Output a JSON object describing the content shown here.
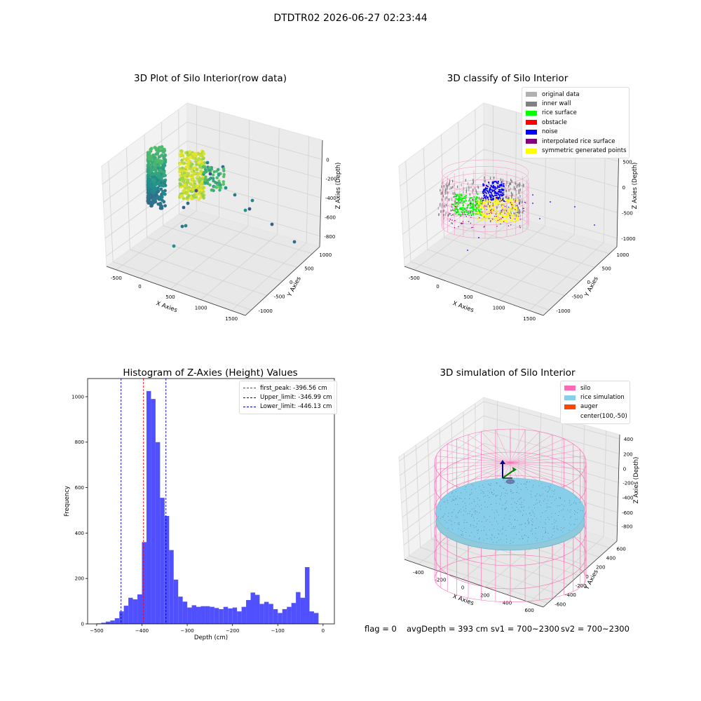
{
  "figure": {
    "suptitle": "DTDTR02 2026-06-27 02:23:44"
  },
  "footer": {
    "flag": "flag = 0",
    "avg_depth": "avgDepth = 393 cm",
    "sv1": "sv1 = 700~2300",
    "sv2": "sv2 = 700~2300"
  },
  "chart_data": [
    {
      "id": "raw-3d",
      "type": "scatter",
      "projection": "3d",
      "title": "3D Plot of Silo Interior(row data)",
      "xlabel": "X Axies",
      "ylabel": "Y Axies",
      "zlabel": "Z Axies (Depth)",
      "xticks": [
        "-500",
        "0",
        "500",
        "1000",
        "1500"
      ],
      "yticks": [
        "-1000",
        "-500",
        "0",
        "500",
        "1000"
      ],
      "zticks": [
        "-800",
        "-600",
        "-400",
        "-200",
        "0"
      ],
      "colormap": "viridis"
    },
    {
      "id": "classify-3d",
      "type": "scatter",
      "projection": "3d",
      "title": "3D classify of Silo Interior",
      "xlabel": "X Axies",
      "ylabel": "Y Axies",
      "zlabel": "Z Axies (Depth)",
      "xticks": [
        "-500",
        "0",
        "500",
        "1000",
        "1500"
      ],
      "yticks": [
        "-1000",
        "-500",
        "0",
        "500",
        "1000"
      ],
      "zticks": [
        "-1000",
        "-500",
        "0",
        "500"
      ],
      "legend_position": "top-right",
      "legend": [
        {
          "label": "original data",
          "color": "#b0b0b0"
        },
        {
          "label": "inner wall",
          "color": "#808080"
        },
        {
          "label": "rice surface",
          "color": "#00ff00"
        },
        {
          "label": "obstacle",
          "color": "#ff0000"
        },
        {
          "label": "noise",
          "color": "#0000ff"
        },
        {
          "label": "interpolated rice surface",
          "color": "#800080"
        },
        {
          "label": "symmetric generated points",
          "color": "#ffff00"
        }
      ]
    },
    {
      "id": "histogram",
      "type": "bar",
      "title": "Histogram of Z-Axies (Height) Values",
      "xlabel": "Depth (cm)",
      "ylabel": "Frequency",
      "xlim": [
        -520,
        25
      ],
      "ylim": [
        0,
        1080
      ],
      "xticks": [
        -500,
        -400,
        -300,
        -200,
        -100,
        0
      ],
      "yticks": [
        0,
        200,
        400,
        600,
        800,
        1000
      ],
      "bar_color": "#4d4dff",
      "bin_start": -500,
      "bin_width": 10,
      "values": [
        2,
        5,
        10,
        15,
        25,
        55,
        80,
        115,
        108,
        130,
        360,
        1025,
        990,
        800,
        555,
        475,
        325,
        195,
        120,
        98,
        72,
        82,
        75,
        78,
        78,
        75,
        70,
        65,
        75,
        68,
        72,
        55,
        75,
        105,
        138,
        128,
        88,
        97,
        88,
        65,
        48,
        65,
        75,
        92,
        140,
        115,
        250,
        55,
        48
      ],
      "legend_position": "top-right",
      "lines": [
        {
          "label": "first_peak: -396.56 cm",
          "x": -396.56,
          "color": "#ff0000"
        },
        {
          "label": "Upper_limit: -346.99 cm",
          "x": -346.99,
          "color": "#0000aa"
        },
        {
          "label": "Lower_limit: -446.13 cm",
          "x": -446.13,
          "color": "#0000aa"
        }
      ]
    },
    {
      "id": "simulation-3d",
      "type": "scatter",
      "projection": "3d",
      "title": "3D simulation of Silo Interior",
      "xlabel": "X Axies",
      "ylabel": "Y Axies",
      "zlabel": "Z Axies (Depth)",
      "xticks": [
        "-400",
        "-200",
        "0",
        "200",
        "400",
        "600"
      ],
      "yticks": [
        "-600",
        "-400",
        "-200",
        "0",
        "200",
        "400",
        "600"
      ],
      "zticks": [
        "-800",
        "-600",
        "-400",
        "-200",
        "0",
        "200",
        "400"
      ],
      "legend_position": "top-right",
      "legend": [
        {
          "label": "silo",
          "color": "#ff69b4"
        },
        {
          "label": "rice simulation",
          "color": "#87ceeb"
        },
        {
          "label": "auger",
          "color": "#ff4500"
        },
        {
          "label": "center(100,-50)",
          "color": "#ffffff"
        }
      ]
    }
  ]
}
